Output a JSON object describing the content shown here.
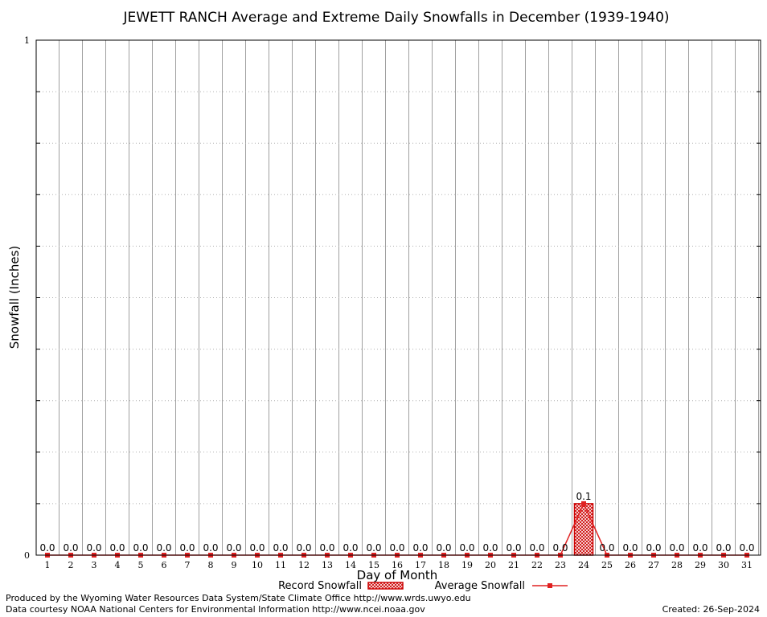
{
  "chart_data": {
    "type": "bar",
    "title": "JEWETT RANCH Average and Extreme Daily Snowfalls in December (1939-1940)",
    "xlabel": "Day of Month",
    "ylabel": "Snowfall (Inches)",
    "ylim": [
      0,
      1
    ],
    "y_ticks": [
      "0",
      "1"
    ],
    "grid": true,
    "categories": [
      "1",
      "2",
      "3",
      "4",
      "5",
      "6",
      "7",
      "8",
      "9",
      "10",
      "11",
      "12",
      "13",
      "14",
      "15",
      "16",
      "17",
      "18",
      "19",
      "20",
      "21",
      "22",
      "23",
      "24",
      "25",
      "26",
      "27",
      "28",
      "29",
      "30",
      "31"
    ],
    "series": [
      {
        "name": "Record Snowfall",
        "kind": "bar",
        "color": "#cc0000",
        "values": [
          0,
          0,
          0,
          0,
          0,
          0,
          0,
          0,
          0,
          0,
          0,
          0,
          0,
          0,
          0,
          0,
          0,
          0,
          0,
          0,
          0,
          0,
          0,
          0.1,
          0,
          0,
          0,
          0,
          0,
          0,
          0
        ]
      },
      {
        "name": "Average Snowfall",
        "kind": "line",
        "color": "#e02020",
        "values": [
          0,
          0,
          0,
          0,
          0,
          0,
          0,
          0,
          0,
          0,
          0,
          0,
          0,
          0,
          0,
          0,
          0,
          0,
          0,
          0,
          0,
          0,
          0,
          0.1,
          0,
          0,
          0,
          0,
          0,
          0,
          0
        ]
      }
    ],
    "data_labels": [
      "0.0",
      "0.0",
      "0.0",
      "0.0",
      "0.0",
      "0.0",
      "0.0",
      "0.0",
      "0.0",
      "0.0",
      "0.0",
      "0.0",
      "0.0",
      "0.0",
      "0.0",
      "0.0",
      "0.0",
      "0.0",
      "0.0",
      "0.0",
      "0.0",
      "0.0",
      "0.0",
      "0.1",
      "0.0",
      "0.0",
      "0.0",
      "0.0",
      "0.0",
      "0.0",
      "0.0"
    ],
    "legend_placement": "bottom-center"
  },
  "footer": {
    "produced_by": "Produced by the Wyoming Water Resources Data System/State Climate Office http://www.wrds.uwyo.edu",
    "courtesy": "Data courtesy NOAA National Centers for Environmental Information http://www.ncei.noaa.gov",
    "created": "Created:  26-Sep-2024"
  }
}
